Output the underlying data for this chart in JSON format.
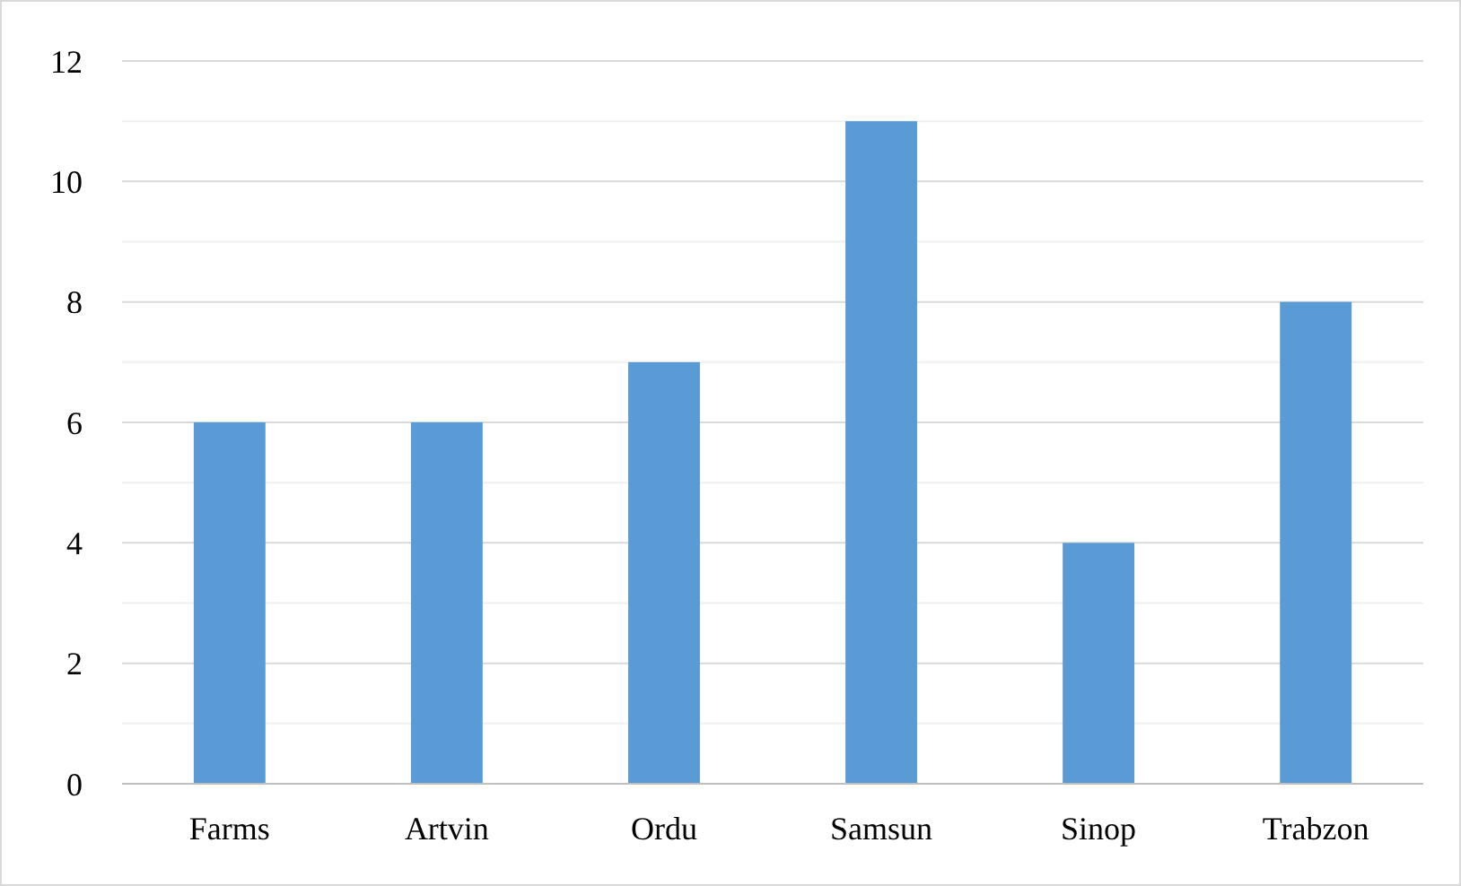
{
  "chart_data": {
    "type": "bar",
    "categories": [
      "Farms",
      "Artvin",
      "Ordu",
      "Samsun",
      "Sinop",
      "Trabzon"
    ],
    "values": [
      6,
      6,
      7,
      11,
      4,
      8
    ],
    "color": "#5b9bd5",
    "ylim": [
      0,
      12
    ],
    "yticks": [
      0,
      {
        "value": 1,
        "label": null
      },
      2,
      {
        "value": 3,
        "label": null
      },
      4,
      {
        "value": 5,
        "label": null
      },
      6,
      {
        "value": 7,
        "label": null
      },
      8,
      {
        "value": 9,
        "label": null
      },
      10,
      {
        "value": 11,
        "label": null
      },
      12
    ],
    "grid": "y"
  }
}
